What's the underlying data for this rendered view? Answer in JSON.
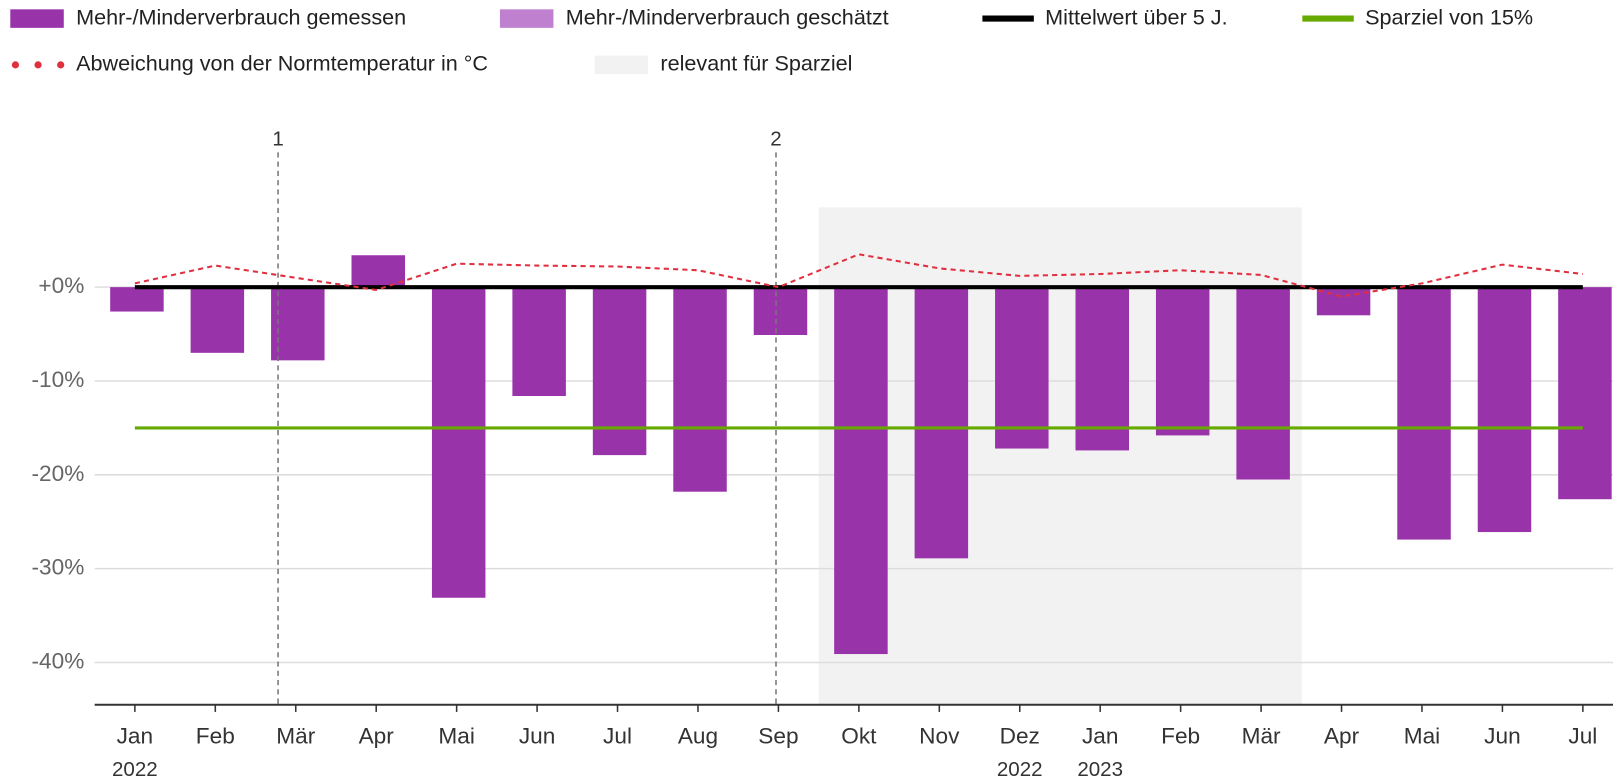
{
  "chart_data": {
    "type": "bar",
    "categories": [
      "Jan",
      "Feb",
      "Mär",
      "Apr",
      "Mai",
      "Jun",
      "Jul",
      "Aug",
      "Sep",
      "Okt",
      "Nov",
      "Dez",
      "Jan",
      "Feb",
      "Mär",
      "Apr",
      "Mai",
      "Jun",
      "Jul"
    ],
    "category_years": [
      "2022",
      null,
      null,
      null,
      null,
      null,
      null,
      null,
      null,
      null,
      null,
      "2022",
      "2023",
      null,
      null,
      null,
      null,
      null,
      null
    ],
    "series": [
      {
        "name": "Mehr-/Minderverbrauch gemessen",
        "kind": "bar",
        "color": "#9933aa",
        "values": [
          -2.6,
          -7.0,
          -7.8,
          3.4,
          -33.1,
          -11.6,
          -17.9,
          -21.8,
          -5.1,
          -39.1,
          -28.9,
          -17.2,
          -17.4,
          -15.8,
          -20.5,
          -3.0,
          -26.9,
          -26.1,
          -22.6
        ]
      },
      {
        "name": "Mehr-/Minderverbrauch geschätzt",
        "kind": "bar",
        "color": "#c080d0",
        "values": [
          null,
          null,
          null,
          null,
          null,
          null,
          null,
          null,
          null,
          null,
          null,
          null,
          null,
          null,
          null,
          null,
          null,
          null,
          null
        ]
      },
      {
        "name": "Mittelwert über 5 J.",
        "kind": "line",
        "color": "#000000",
        "values": [
          0,
          0,
          0,
          0,
          0,
          0,
          0,
          0,
          0,
          0,
          0,
          0,
          0,
          0,
          0,
          0,
          0,
          0,
          0
        ]
      },
      {
        "name": "Sparziel von 15%",
        "kind": "line",
        "color": "#66aa00",
        "values": [
          -15,
          -15,
          -15,
          -15,
          -15,
          -15,
          -15,
          -15,
          -15,
          -15,
          -15,
          -15,
          -15,
          -15,
          -15,
          -15,
          -15,
          -15,
          -15
        ]
      },
      {
        "name": "Abweichung von der Normtemperatur in °C",
        "kind": "dotted",
        "color": "#e0303f",
        "values": [
          0.4,
          2.3,
          1.0,
          -0.3,
          2.5,
          2.3,
          2.2,
          1.8,
          0,
          3.5,
          2.0,
          1.2,
          1.4,
          1.8,
          1.3,
          -1.0,
          0.4,
          2.4,
          1.4
        ]
      },
      {
        "name": "relevant für Sparziel",
        "kind": "band",
        "color": "#f2f2f2",
        "values": [
          null,
          null,
          null,
          null,
          null,
          null,
          null,
          null,
          null,
          8.5,
          8.5,
          8.5,
          8.5,
          8.5,
          8.5,
          null,
          null,
          null,
          null
        ]
      }
    ],
    "annotations": [
      {
        "label": "1",
        "x": 1.78
      },
      {
        "label": "2",
        "x": 7.97
      }
    ],
    "ylim": [
      -44.5,
      17
    ],
    "yticks": [
      {
        "value": 0,
        "label": "+0%"
      },
      {
        "value": -10,
        "label": "-10%"
      },
      {
        "value": -20,
        "label": "-20%"
      },
      {
        "value": -30,
        "label": "-30%"
      },
      {
        "value": -40,
        "label": "-40%"
      }
    ],
    "grid": true
  }
}
